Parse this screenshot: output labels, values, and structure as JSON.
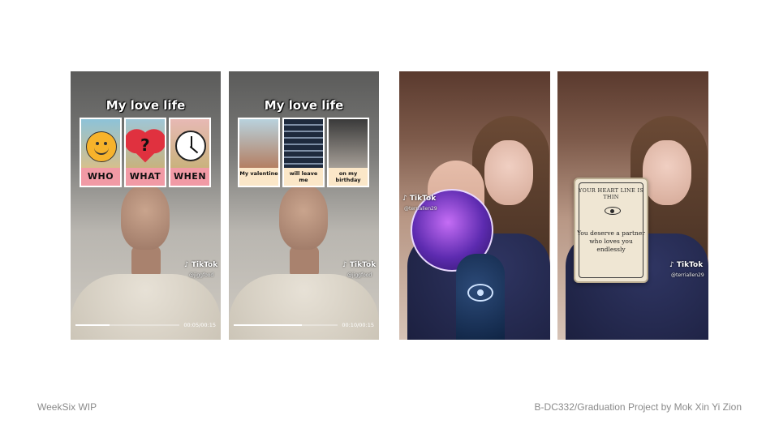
{
  "slide": {
    "footer_left": "WeekSix WIP",
    "footer_right": "B-DC332/Graduation Project by Mok Xin Yi Zion"
  },
  "panels": [
    {
      "title": "My love life",
      "cards": [
        "WHO",
        "WHAT",
        "WHEN"
      ],
      "watermark": "TikTok",
      "handle": "@jiggfood",
      "time": "00:05/00:15",
      "progress": 0.33
    },
    {
      "title": "My love life",
      "cards": [
        "My valentine",
        "will leave me",
        "on my birthday"
      ],
      "watermark": "TikTok",
      "handle": "@jiggfood",
      "time": "00:10/00:15",
      "progress": 0.66
    },
    {
      "watermark": "TikTok",
      "handle": "@terriallen29"
    },
    {
      "watermark": "TikTok",
      "handle": "@terriallen29",
      "fortune_heading": "YOUR HEART LINE IS THIN",
      "fortune_text": "You deserve a partner who loves you endlessly"
    }
  ],
  "icons": [
    "tiktok-logo-icon",
    "smiley-icon",
    "heart-question-icon",
    "clock-icon",
    "eye-icon"
  ]
}
